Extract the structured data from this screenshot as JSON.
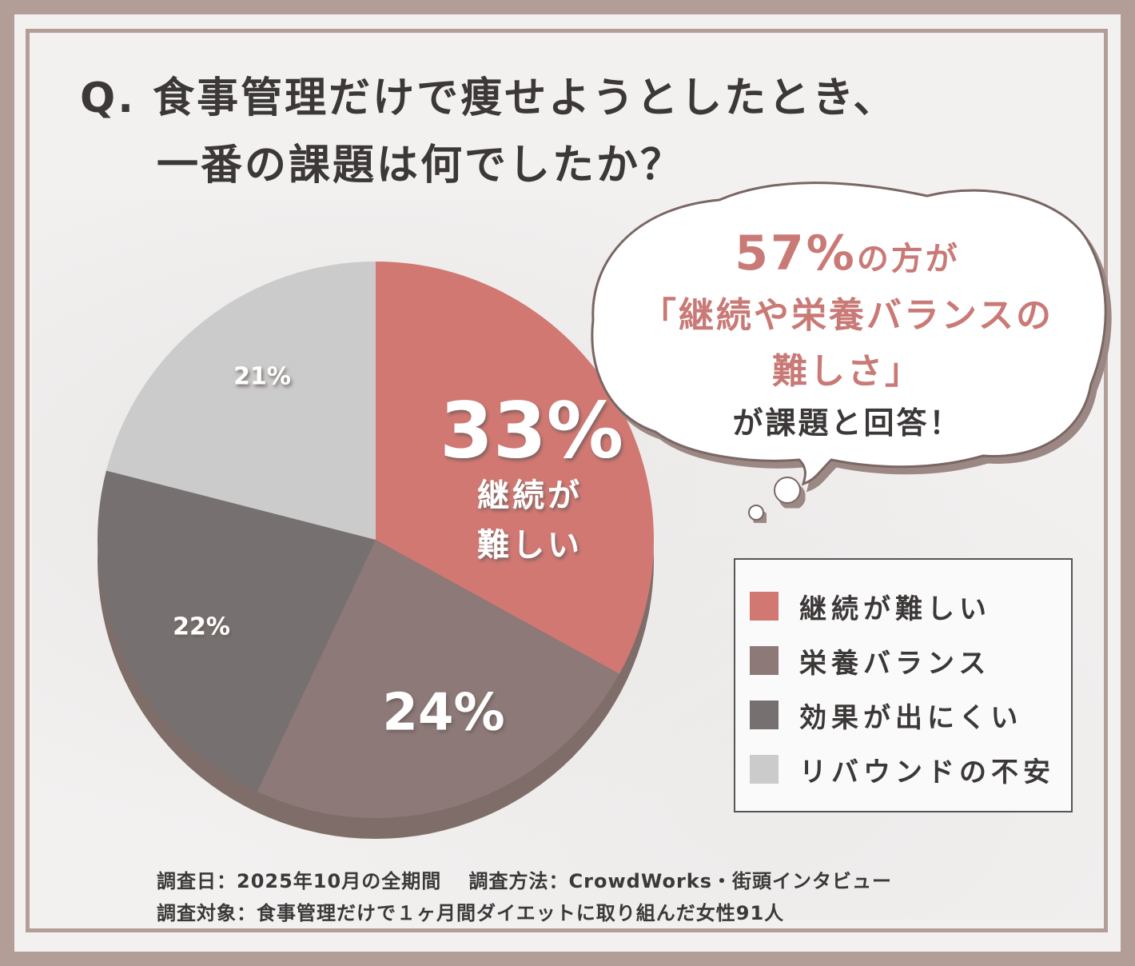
{
  "title": {
    "line1": "Q. 食事管理だけで痩せようとしたとき、",
    "line2": "一番の課題は何でしたか？"
  },
  "chart_data": {
    "type": "pie",
    "categories": [
      "継続が難しい",
      "栄養バランス",
      "効果が出にくい",
      "リバウンドの不安"
    ],
    "values": [
      33,
      24,
      22,
      21
    ],
    "slice_labels": [
      "33%",
      "24%",
      "22%",
      "21%"
    ],
    "inner_label_main": [
      "継続が",
      "難しい"
    ],
    "colors": [
      "#d27873",
      "#8c7978",
      "#767170",
      "#cbcbcb"
    ],
    "legend_position": "right"
  },
  "legend": {
    "items": [
      {
        "label": "継続が難しい",
        "color": "#d27873"
      },
      {
        "label": "栄養バランス",
        "color": "#8c7978"
      },
      {
        "label": "効果が出にくい",
        "color": "#767170"
      },
      {
        "label": "リバウンドの不安",
        "color": "#cbcbcb"
      }
    ]
  },
  "bubble": {
    "pct": "57%",
    "pct_suffix": "の方が",
    "line2": "「継続や栄養バランスの",
    "line3": "難しさ」",
    "line4": "が課題と回答！"
  },
  "footer": {
    "line1": "調査日：2025年10月の全期間　 調査方法：CrowdWorks・街頭インタビュー",
    "line2": "調査対象：食事管理だけで１ヶ月間ダイエットに取り組んだ女性91人"
  },
  "colors": {
    "frame": "#b39d97",
    "accent": "#d27873",
    "text": "#3c3838"
  }
}
